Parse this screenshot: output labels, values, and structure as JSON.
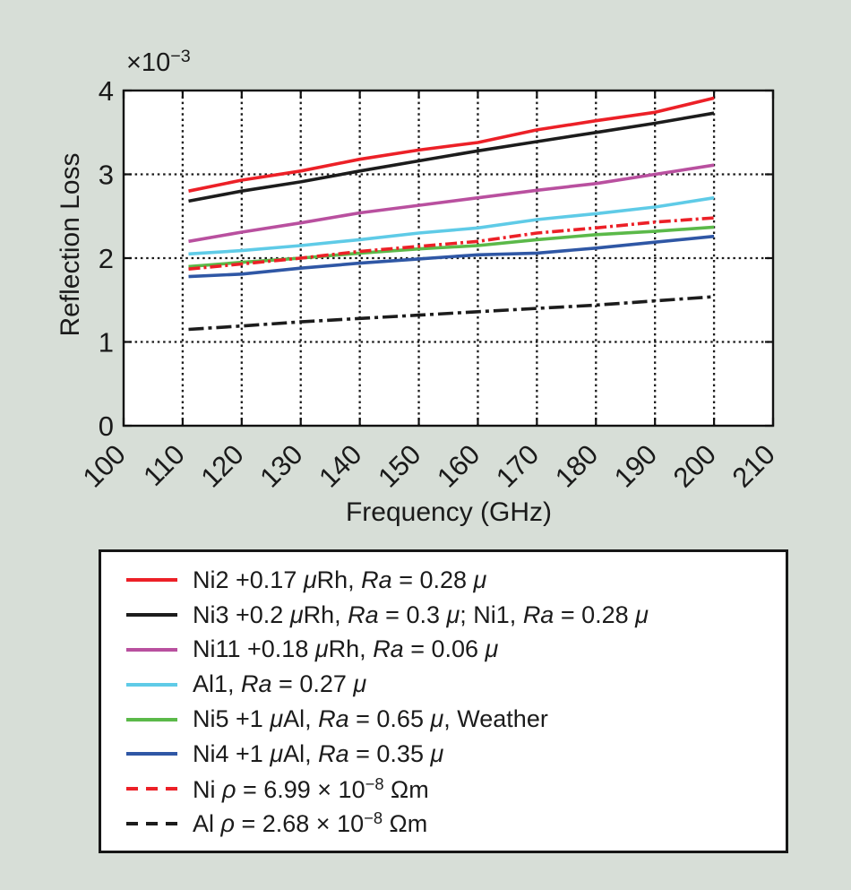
{
  "figure": {
    "background": "#D7DED7",
    "offset_label": {
      "base": "×10",
      "exponent": "−3"
    }
  },
  "chart_data": {
    "type": "line",
    "title": "",
    "xlabel": "Frequency (GHz)",
    "ylabel": "Reflection Loss",
    "y_axis_multiplier": "×10⁻³",
    "xlim": [
      100,
      210
    ],
    "ylim": [
      0,
      4
    ],
    "x_ticks": [
      100,
      110,
      120,
      130,
      140,
      150,
      160,
      170,
      180,
      190,
      200,
      210
    ],
    "y_ticks": [
      0,
      1,
      2,
      3,
      4
    ],
    "grid": true,
    "grid_style": "dotted",
    "legend_position": "below",
    "x": [
      111,
      120,
      130,
      140,
      150,
      160,
      170,
      180,
      190,
      200
    ],
    "series": [
      {
        "name": "Ni2 +0.17 μRh, Ra = 0.28 μ",
        "color": "#EC2027",
        "style": "solid",
        "values": [
          2.8,
          2.93,
          3.04,
          3.18,
          3.29,
          3.38,
          3.53,
          3.64,
          3.74,
          3.91
        ]
      },
      {
        "name": "Ni3 +0.2 μRh, Ra = 0.3 μ; Ni1, Ra = 0.28 μ",
        "color": "#1c1c1c",
        "style": "solid",
        "values": [
          2.68,
          2.8,
          2.91,
          3.04,
          3.16,
          3.28,
          3.39,
          3.5,
          3.61,
          3.73
        ]
      },
      {
        "name": "Ni11 +0.18 μRh, Ra = 0.06 μ",
        "color": "#B9509F",
        "style": "solid",
        "values": [
          2.2,
          2.31,
          2.42,
          2.54,
          2.63,
          2.72,
          2.81,
          2.89,
          3.0,
          3.11
        ]
      },
      {
        "name": "Al1, Ra = 0.27 μ",
        "color": "#5FCBE7",
        "style": "solid",
        "values": [
          2.05,
          2.09,
          2.15,
          2.22,
          2.3,
          2.36,
          2.46,
          2.53,
          2.61,
          2.72
        ]
      },
      {
        "name": "Ni5 +1 μAl, Ra = 0.65 μ, Weather",
        "color": "#5BB949",
        "style": "solid",
        "values": [
          1.9,
          1.95,
          2.0,
          2.06,
          2.11,
          2.15,
          2.22,
          2.28,
          2.32,
          2.37
        ]
      },
      {
        "name": "Ni4 +1 μAl, Ra = 0.35 μ",
        "color": "#2F57A5",
        "style": "solid",
        "values": [
          1.78,
          1.81,
          1.88,
          1.94,
          1.99,
          2.04,
          2.06,
          2.12,
          2.19,
          2.26
        ]
      },
      {
        "name": "Ni ρ = 6.99 × 10⁻⁸ Ωm",
        "color": "#EC2027",
        "style": "dashdot",
        "values": [
          1.87,
          1.93,
          2.0,
          2.08,
          2.14,
          2.2,
          2.3,
          2.36,
          2.43,
          2.48
        ]
      },
      {
        "name": "Al ρ = 2.68 × 10⁻⁸ Ωm",
        "color": "#1c1c1c",
        "style": "dashdot",
        "values": [
          1.15,
          1.19,
          1.24,
          1.28,
          1.32,
          1.36,
          1.4,
          1.44,
          1.49,
          1.54
        ]
      }
    ]
  },
  "legend": {
    "items": [
      {
        "label": "Ni2 +0.17 μRh, Ra = 0.28 μ",
        "color": "#EC2027",
        "line_style": "solid",
        "segments": [
          {
            "t": "Ni2 +0.17 "
          },
          {
            "t": "μ",
            "i": true
          },
          {
            "t": "Rh, "
          },
          {
            "t": "Ra",
            "i": true
          },
          {
            "t": " = 0.28 "
          },
          {
            "t": "μ",
            "i": true
          }
        ]
      },
      {
        "label": "Ni3 +0.2 μRh, Ra = 0.3 μ; Ni1, Ra = 0.28 μ",
        "color": "#1c1c1c",
        "line_style": "solid",
        "segments": [
          {
            "t": "Ni3 +0.2 "
          },
          {
            "t": "μ",
            "i": true
          },
          {
            "t": "Rh, "
          },
          {
            "t": "Ra",
            "i": true
          },
          {
            "t": " = 0.3 "
          },
          {
            "t": "μ",
            "i": true
          },
          {
            "t": "; Ni1, "
          },
          {
            "t": "Ra",
            "i": true
          },
          {
            "t": " = 0.28 "
          },
          {
            "t": "μ",
            "i": true
          }
        ]
      },
      {
        "label": "Ni11 +0.18 μRh, Ra = 0.06 μ",
        "color": "#B9509F",
        "line_style": "solid",
        "segments": [
          {
            "t": "Ni11 +0.18 "
          },
          {
            "t": "μ",
            "i": true
          },
          {
            "t": "Rh, "
          },
          {
            "t": "Ra",
            "i": true
          },
          {
            "t": " = 0.06 "
          },
          {
            "t": "μ",
            "i": true
          }
        ]
      },
      {
        "label": "Al1, Ra = 0.27 μ",
        "color": "#5FCBE7",
        "line_style": "solid",
        "segments": [
          {
            "t": "Al1, "
          },
          {
            "t": "Ra",
            "i": true
          },
          {
            "t": " = 0.27 "
          },
          {
            "t": "μ",
            "i": true
          }
        ]
      },
      {
        "label": "Ni5 +1 μAl, Ra = 0.65 μ, Weather",
        "color": "#5BB949",
        "line_style": "solid",
        "segments": [
          {
            "t": "Ni5 +1 "
          },
          {
            "t": "μ",
            "i": true
          },
          {
            "t": "Al, "
          },
          {
            "t": "Ra",
            "i": true
          },
          {
            "t": " = 0.65 "
          },
          {
            "t": "μ",
            "i": true
          },
          {
            "t": ", Weather"
          }
        ]
      },
      {
        "label": "Ni4 +1 μAl, Ra = 0.35 μ",
        "color": "#2F57A5",
        "line_style": "solid",
        "segments": [
          {
            "t": "Ni4 +1 "
          },
          {
            "t": "μ",
            "i": true
          },
          {
            "t": "Al, "
          },
          {
            "t": "Ra",
            "i": true
          },
          {
            "t": " = 0.35 "
          },
          {
            "t": "μ",
            "i": true
          }
        ]
      },
      {
        "label": "Ni ρ = 6.99 × 10⁻⁸ Ωm",
        "color": "#EC2027",
        "line_style": "dashed",
        "segments": [
          {
            "t": "Ni "
          },
          {
            "t": "ρ",
            "i": true
          },
          {
            "t": " = 6.99 × 10"
          },
          {
            "t": "−8",
            "sup": true
          },
          {
            "t": " Ωm"
          }
        ]
      },
      {
        "label": "Al ρ = 2.68 × 10⁻⁸ Ωm",
        "color": "#1c1c1c",
        "line_style": "dashed",
        "segments": [
          {
            "t": "Al "
          },
          {
            "t": "ρ",
            "i": true
          },
          {
            "t": " = 2.68 × 10"
          },
          {
            "t": "−8",
            "sup": true
          },
          {
            "t": " Ωm"
          }
        ]
      }
    ]
  }
}
